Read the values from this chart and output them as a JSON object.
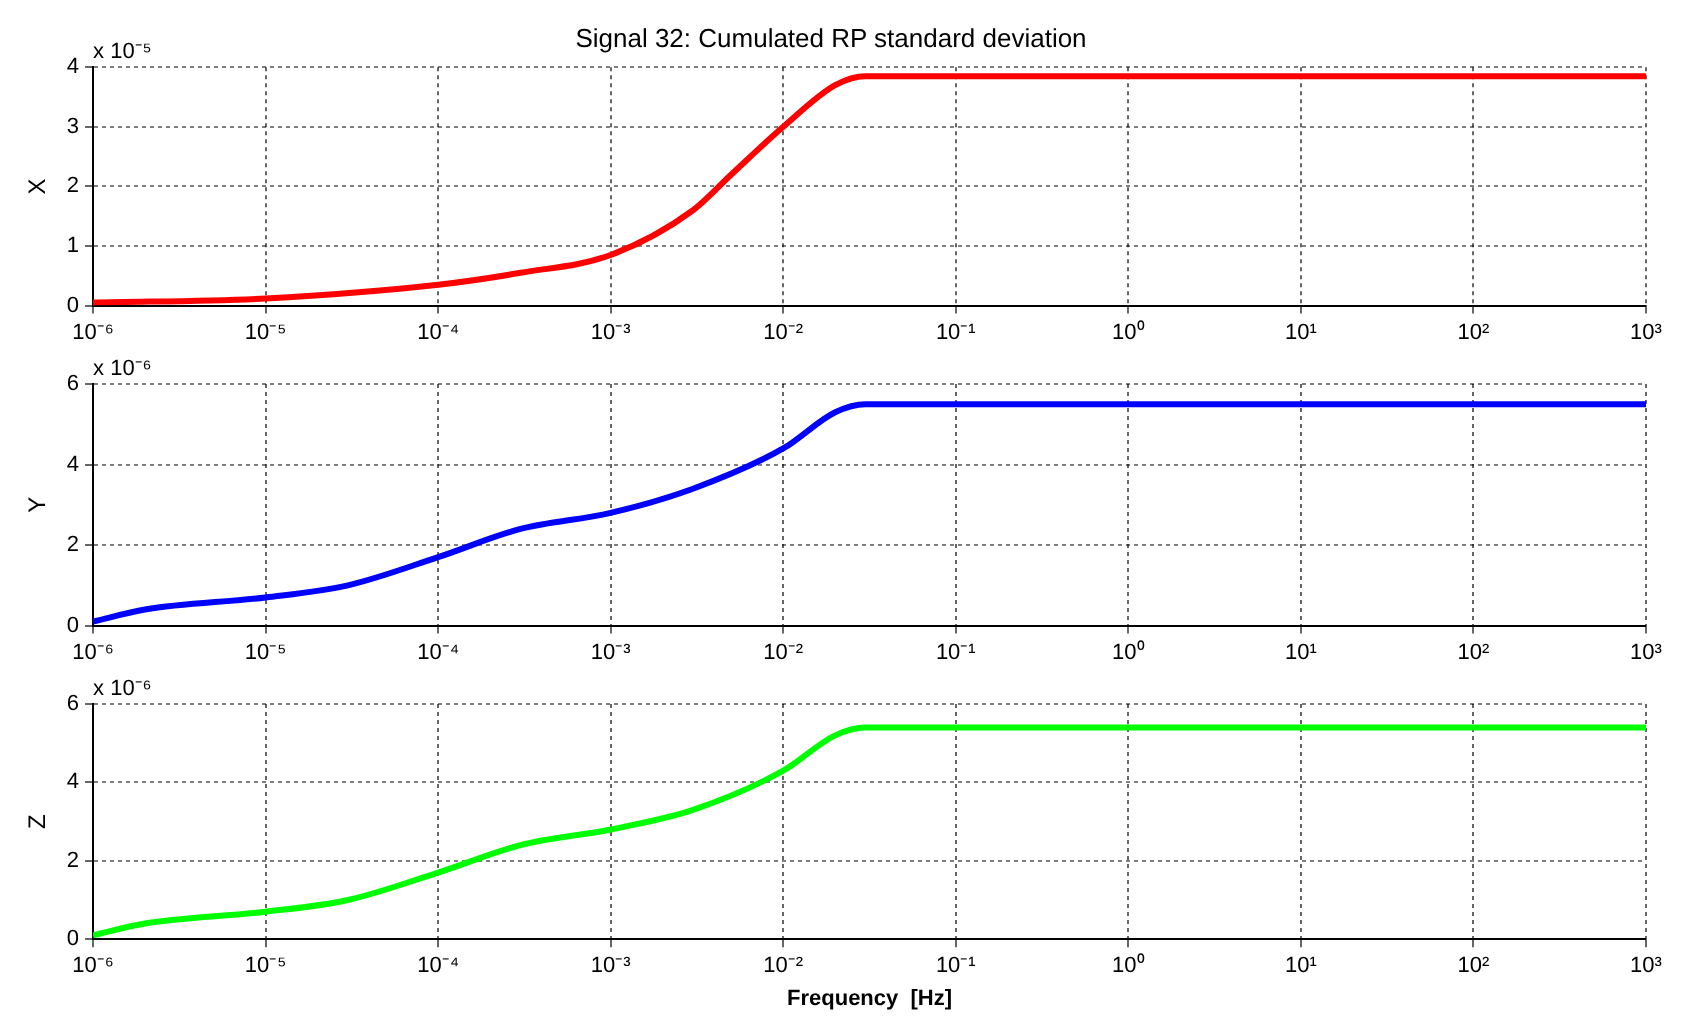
{
  "chart_data": [
    {
      "type": "line",
      "title": "Signal 32: Cumulated RP standard deviation",
      "ylabel": "X",
      "annotations": [
        "x 10⁻⁵"
      ],
      "log": "x",
      "grid": true,
      "x": [
        1e-06,
        1e-05,
        0.0001,
        0.0003,
        0.001,
        0.003,
        0.005,
        0.01,
        0.02,
        0.03,
        0.1,
        1,
        10,
        100,
        1000
      ],
      "series": [
        {
          "color": "#ff0000",
          "values": [
            0.05,
            0.12,
            0.35,
            0.55,
            0.85,
            1.6,
            2.2,
            3.0,
            3.7,
            3.85,
            3.85,
            3.85,
            3.85,
            3.85,
            3.85
          ]
        }
      ],
      "xlim": [
        1e-06,
        1000
      ],
      "xticks": [
        {
          "value": 1e-06,
          "label": "10⁻⁶"
        },
        {
          "value": 1e-05,
          "label": "10⁻⁵"
        },
        {
          "value": 0.0001,
          "label": "10⁻⁴"
        },
        {
          "value": 0.001,
          "label": "10⁻³"
        },
        {
          "value": 0.01,
          "label": "10⁻²"
        },
        {
          "value": 0.1,
          "label": "10⁻¹"
        },
        {
          "value": 1,
          "label": "10⁰"
        },
        {
          "value": 10,
          "label": "10¹"
        },
        {
          "value": 100,
          "label": "10²"
        },
        {
          "value": 1000,
          "label": "10³"
        }
      ],
      "ylim": [
        0,
        4
      ],
      "yticks": [
        0,
        1,
        2,
        3,
        4
      ]
    },
    {
      "type": "line",
      "ylabel": "Y",
      "annotations": [
        "x 10⁻⁶"
      ],
      "log": "x",
      "grid": true,
      "x": [
        1e-06,
        2e-06,
        1e-05,
        3e-05,
        0.0001,
        0.0003,
        0.001,
        0.003,
        0.01,
        0.02,
        0.03,
        0.1,
        1,
        10,
        100,
        1000
      ],
      "series": [
        {
          "color": "#0000ff",
          "values": [
            0.1,
            0.4,
            0.7,
            1.0,
            1.7,
            2.4,
            2.8,
            3.4,
            4.4,
            5.3,
            5.5,
            5.5,
            5.5,
            5.5,
            5.5,
            5.5
          ]
        }
      ],
      "xlim": [
        1e-06,
        1000
      ],
      "xticks": [
        {
          "value": 1e-06,
          "label": "10⁻⁶"
        },
        {
          "value": 1e-05,
          "label": "10⁻⁵"
        },
        {
          "value": 0.0001,
          "label": "10⁻⁴"
        },
        {
          "value": 0.001,
          "label": "10⁻³"
        },
        {
          "value": 0.01,
          "label": "10⁻²"
        },
        {
          "value": 0.1,
          "label": "10⁻¹"
        },
        {
          "value": 1,
          "label": "10⁰"
        },
        {
          "value": 10,
          "label": "10¹"
        },
        {
          "value": 100,
          "label": "10²"
        },
        {
          "value": 1000,
          "label": "10³"
        }
      ],
      "ylim": [
        0,
        6
      ],
      "yticks": [
        0,
        2,
        4,
        6
      ]
    },
    {
      "type": "line",
      "ylabel": "Z",
      "xlabel": "Frequency  [Hz]",
      "annotations": [
        "x 10⁻⁶"
      ],
      "log": "x",
      "grid": true,
      "x": [
        1e-06,
        2e-06,
        1e-05,
        3e-05,
        0.0001,
        0.0003,
        0.001,
        0.003,
        0.01,
        0.02,
        0.03,
        0.1,
        1,
        10,
        100,
        1000
      ],
      "series": [
        {
          "color": "#00ff00",
          "values": [
            0.1,
            0.4,
            0.7,
            1.0,
            1.7,
            2.4,
            2.8,
            3.3,
            4.3,
            5.2,
            5.4,
            5.4,
            5.4,
            5.4,
            5.4,
            5.4
          ]
        }
      ],
      "xlim": [
        1e-06,
        1000
      ],
      "xticks": [
        {
          "value": 1e-06,
          "label": "10⁻⁶"
        },
        {
          "value": 1e-05,
          "label": "10⁻⁵"
        },
        {
          "value": 0.0001,
          "label": "10⁻⁴"
        },
        {
          "value": 0.001,
          "label": "10⁻³"
        },
        {
          "value": 0.01,
          "label": "10⁻²"
        },
        {
          "value": 0.1,
          "label": "10⁻¹"
        },
        {
          "value": 1,
          "label": "10⁰"
        },
        {
          "value": 10,
          "label": "10¹"
        },
        {
          "value": 100,
          "label": "10²"
        },
        {
          "value": 1000,
          "label": "10³"
        }
      ],
      "ylim": [
        0,
        6
      ],
      "yticks": [
        0,
        2,
        4,
        6
      ]
    }
  ]
}
